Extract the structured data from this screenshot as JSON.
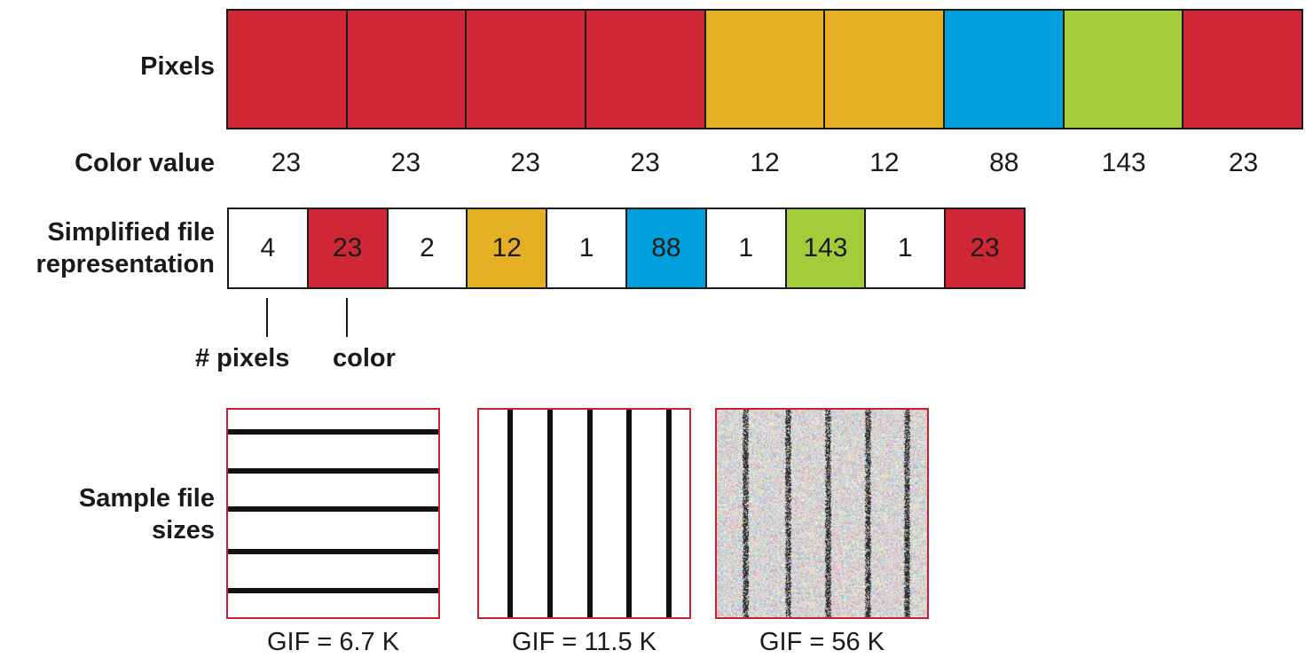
{
  "colors": {
    "red": "#d02736",
    "yellow": "#e5b023",
    "blue": "#00a0dc",
    "green": "#a3cc3a",
    "white": "#ffffff"
  },
  "labels": {
    "pixels": "Pixels",
    "color_value": "Color value",
    "simplified_line1": "Simplified file",
    "simplified_line2": "representation",
    "sample_line1": "Sample file",
    "sample_line2": "sizes",
    "num_pixels": "# pixels",
    "color": "color"
  },
  "pixels": [
    {
      "value": "23",
      "color": "red"
    },
    {
      "value": "23",
      "color": "red"
    },
    {
      "value": "23",
      "color": "red"
    },
    {
      "value": "23",
      "color": "red"
    },
    {
      "value": "12",
      "color": "yellow"
    },
    {
      "value": "12",
      "color": "yellow"
    },
    {
      "value": "88",
      "color": "blue"
    },
    {
      "value": "143",
      "color": "green"
    },
    {
      "value": "23",
      "color": "red"
    }
  ],
  "rle": [
    {
      "text": "4",
      "color": "white"
    },
    {
      "text": "23",
      "color": "red"
    },
    {
      "text": "2",
      "color": "white"
    },
    {
      "text": "12",
      "color": "yellow"
    },
    {
      "text": "1",
      "color": "white"
    },
    {
      "text": "88",
      "color": "blue"
    },
    {
      "text": "1",
      "color": "white"
    },
    {
      "text": "143",
      "color": "green"
    },
    {
      "text": "1",
      "color": "white"
    },
    {
      "text": "23",
      "color": "red"
    }
  ],
  "samples": [
    {
      "pattern": "horizontal-lines",
      "caption": "GIF = 6.7 K"
    },
    {
      "pattern": "vertical-lines",
      "caption": "GIF = 11.5 K"
    },
    {
      "pattern": "vertical-lines-with-noise",
      "caption": "GIF = 56 K"
    }
  ]
}
